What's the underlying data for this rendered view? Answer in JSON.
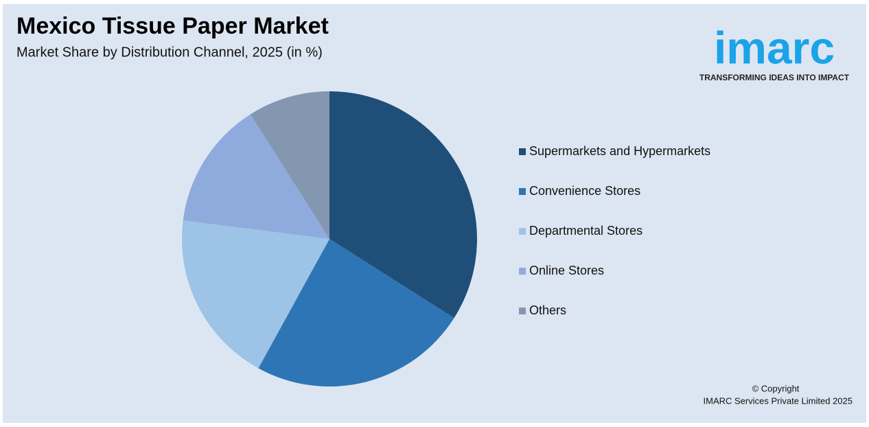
{
  "chart_data": {
    "type": "pie",
    "title": "Mexico Tissue Paper Market",
    "subtitle": "Market Share by Distribution Channel, 2025 (in %)",
    "categories": [
      "Supermarkets and Hypermarkets",
      "Convenience Stores",
      "Departmental Stores",
      "Online Stores",
      "Others"
    ],
    "values": [
      34,
      24,
      19,
      14,
      9
    ],
    "colors": [
      "#1f4e79",
      "#2e75b6",
      "#9dc3e6",
      "#8faadc",
      "#8497b0"
    ],
    "legend": "right"
  },
  "logo": {
    "name": "imarc",
    "tagline": "TRANSFORMING IDEAS INTO IMPACT"
  },
  "footer": {
    "copyright": "© Copyright",
    "owner": "IMARC Services Private Limited 2025"
  }
}
